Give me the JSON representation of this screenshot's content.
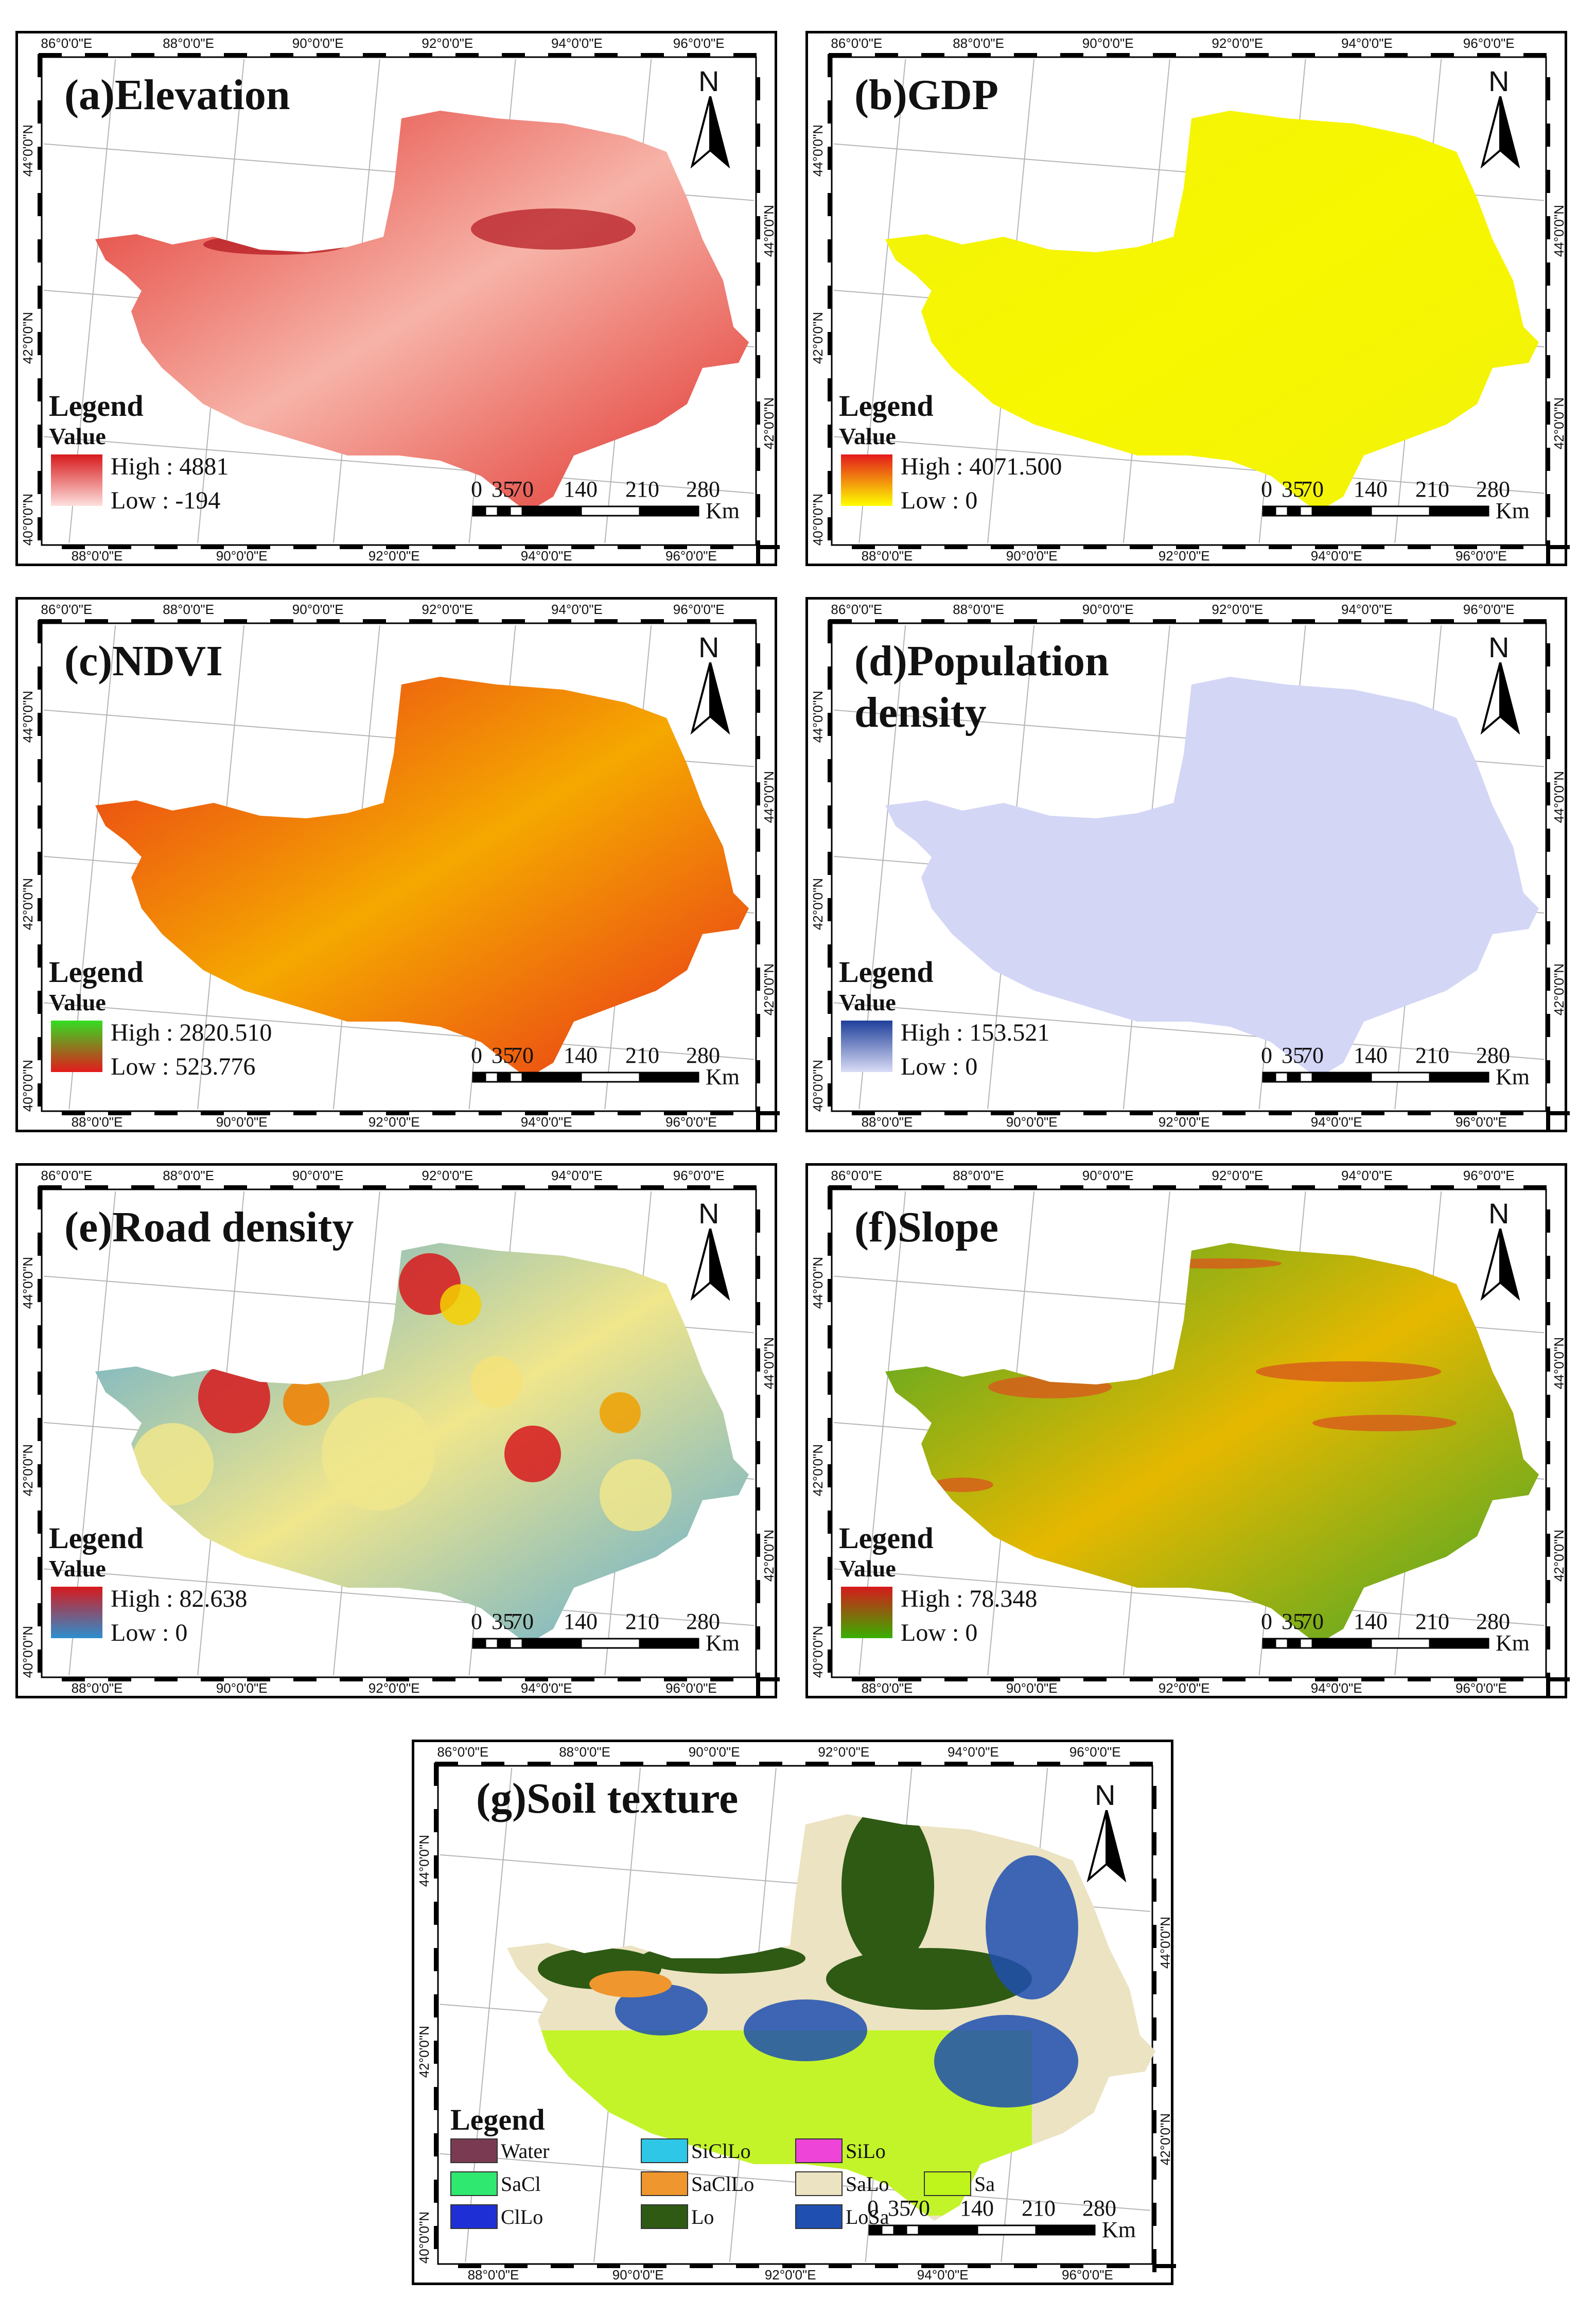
{
  "figure": {
    "lon_labels": [
      "86°0'0\"E",
      "88°0'0\"E",
      "90°0'0\"E",
      "92°0'0\"E",
      "94°0'0\"E",
      "96°0'0\"E"
    ],
    "lon_labels_bottom": [
      "88°0'0\"E",
      "90°0'0\"E",
      "92°0'0\"E",
      "94°0'0\"E",
      "96°0'0\"E"
    ],
    "lat_labels_left": [
      "44°0'0\"N",
      "42°0'0\"N",
      "40°0'0\"N"
    ],
    "lat_labels_right": [
      "44°0'0\"N",
      "42°0'0\"N"
    ],
    "north_label": "N",
    "legend_title": "Legend",
    "value_label": "Value",
    "scale": {
      "ticks": [
        "0",
        "35",
        "70",
        "140",
        "210",
        "280"
      ],
      "unit": "Km"
    }
  },
  "panels": [
    {
      "id": "a",
      "title": "(a)Elevation",
      "high": "High : 4881",
      "low": "Low : -194",
      "colors": {
        "high": "#d7191c",
        "low": "#fde0dd",
        "fill_dark": "#e0302a",
        "fill_light": "#f7b3a8"
      }
    },
    {
      "id": "b",
      "title": "(b)GDP",
      "high": "High : 4071.500",
      "low": "Low : 0",
      "colors": {
        "high": "#e31a1c",
        "low": "#ffff00",
        "fill_dark": "#f2f20a",
        "fill_light": "#f7f700"
      }
    },
    {
      "id": "c",
      "title": "(c)NDVI",
      "high": "High : 2820.510",
      "low": "Low : 523.776",
      "colors": {
        "high": "#33dd22",
        "low": "#e31a1c",
        "fill_dark": "#e8301a",
        "fill_light": "#f5a800"
      }
    },
    {
      "id": "d",
      "title": "(d)Population density",
      "high": "High : 153.521",
      "low": "Low : 0",
      "colors": {
        "high": "#1f3f9a",
        "low": "#d9dcf5",
        "fill_dark": "#d4d6f6",
        "fill_light": "#d4d6f6"
      }
    },
    {
      "id": "e",
      "title": "(e)Road density",
      "high": "High : 82.638",
      "low": "Low : 0",
      "colors": {
        "high": "#d7191c",
        "low": "#2c8fd0",
        "fill_dark": "#5aa9d6",
        "fill_light": "#f0e68c"
      }
    },
    {
      "id": "f",
      "title": "(f)Slope",
      "high": "High : 78.348",
      "low": "Low : 0",
      "colors": {
        "high": "#d7191c",
        "low": "#38b000",
        "fill_dark": "#3fa62a",
        "fill_light": "#e6b800"
      }
    }
  ],
  "soil": {
    "title": "(g)Soil texture",
    "classes": [
      {
        "label": "Water",
        "color": "#7a3b52"
      },
      {
        "label": "SiClLo",
        "color": "#2ec7e8"
      },
      {
        "label": "SiLo",
        "color": "#ee44d8"
      },
      {
        "label": "SaCl",
        "color": "#2ee870"
      },
      {
        "label": "SaClLo",
        "color": "#f0962e"
      },
      {
        "label": "SaLo",
        "color": "#ece3c2"
      },
      {
        "label": "Sa",
        "color": "#bff51a"
      },
      {
        "label": "ClLo",
        "color": "#1f2fd6"
      },
      {
        "label": "Lo",
        "color": "#2e5a14"
      },
      {
        "label": "LoSa",
        "color": "#1f4fb0"
      }
    ]
  }
}
